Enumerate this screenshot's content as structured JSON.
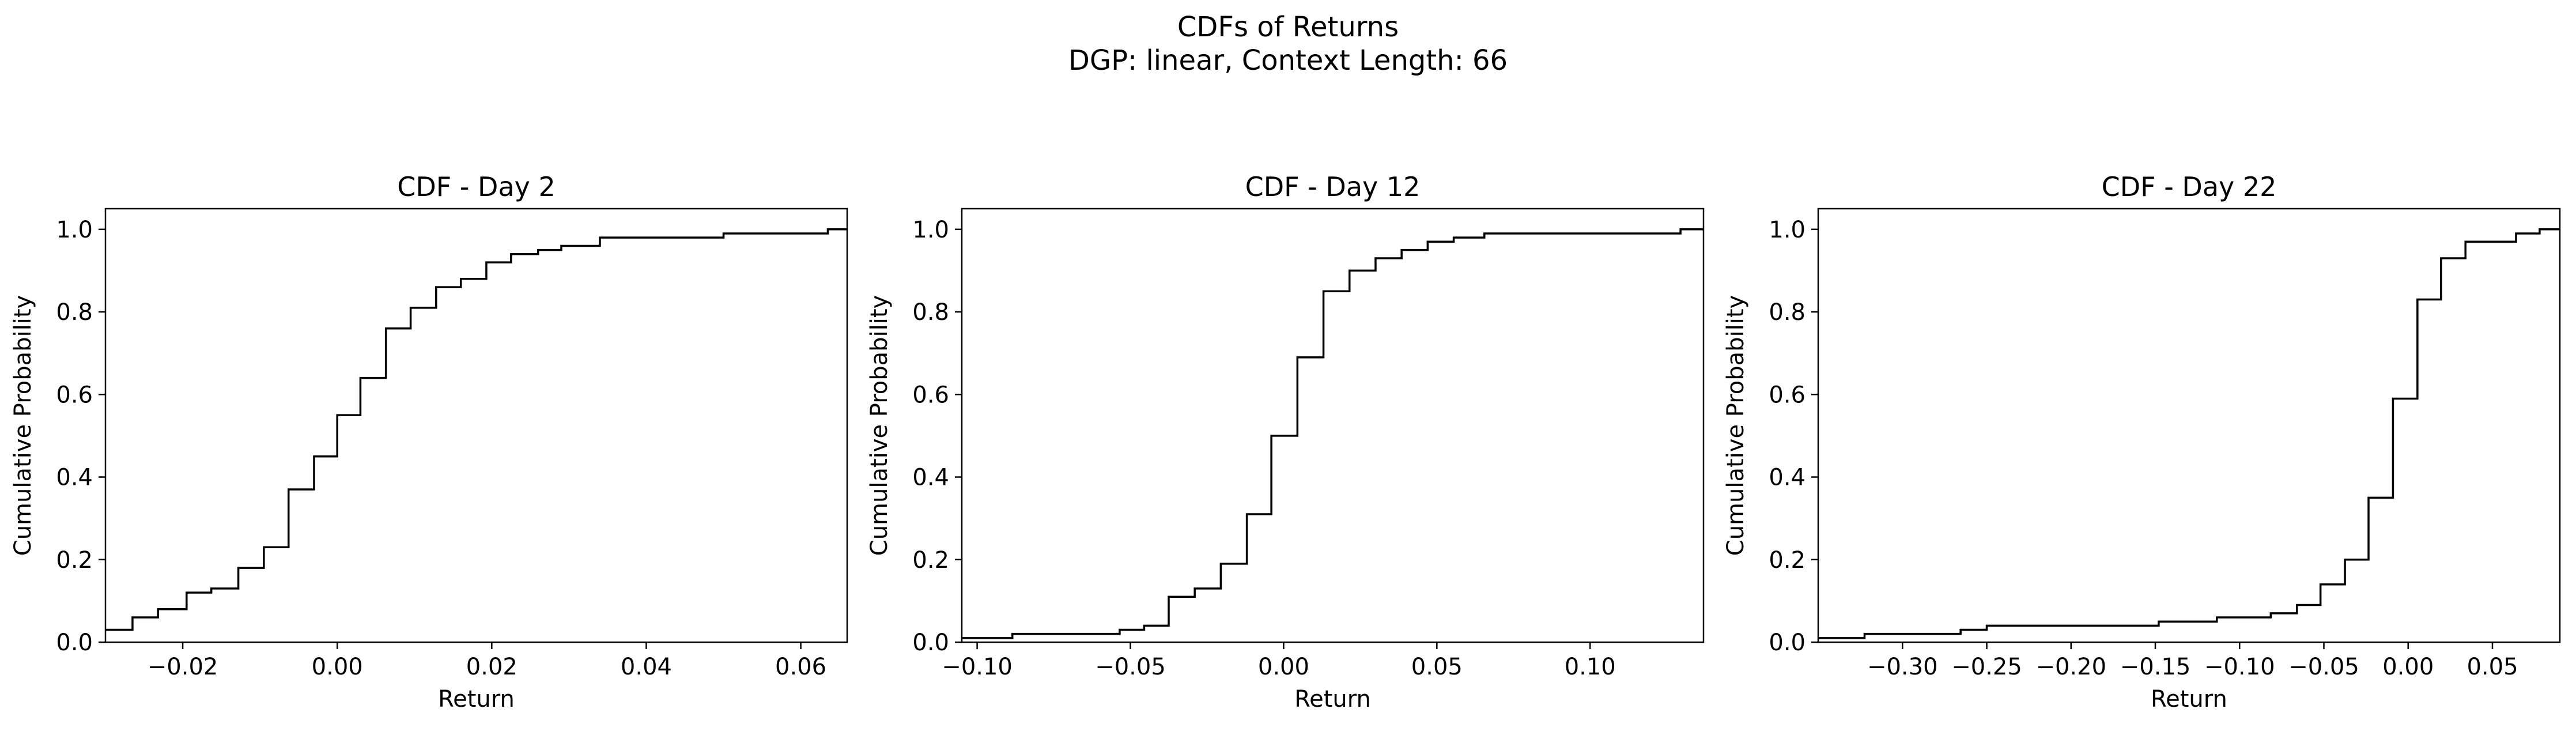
{
  "figure": {
    "title": "CDFs of Returns",
    "subtitle": "DGP: linear, Context Length: 66"
  },
  "chart_data": [
    {
      "type": "line",
      "step": true,
      "title": "CDF - Day 2",
      "xlabel": "Return",
      "ylabel": "Cumulative Probability",
      "xlim": [
        -0.03,
        0.066
      ],
      "ylim": [
        0.0,
        1.05
      ],
      "xticks": [
        -0.02,
        0.0,
        0.02,
        0.04,
        0.06
      ],
      "xtick_labels": [
        "−0.02",
        "0.00",
        "0.02",
        "0.04",
        "0.06"
      ],
      "yticks": [
        0.0,
        0.2,
        0.4,
        0.6,
        0.8,
        1.0
      ],
      "ytick_labels": [
        "0.0",
        "0.2",
        "0.4",
        "0.6",
        "0.8",
        "1.0"
      ],
      "line_color": "#000000",
      "series": [
        {
          "x": [
            -0.03,
            -0.0265,
            -0.0232,
            -0.0195,
            -0.0163,
            -0.0128,
            -0.0095,
            -0.0063,
            -0.003,
            0.0,
            0.003,
            0.0063,
            0.0095,
            0.0128,
            0.016,
            0.0193,
            0.0225,
            0.026,
            0.029,
            0.034,
            0.05,
            0.0635,
            0.066
          ],
          "y": [
            0.03,
            0.06,
            0.08,
            0.12,
            0.13,
            0.18,
            0.23,
            0.37,
            0.45,
            0.55,
            0.64,
            0.76,
            0.81,
            0.86,
            0.88,
            0.92,
            0.94,
            0.95,
            0.96,
            0.98,
            0.99,
            1.0,
            1.0
          ]
        }
      ]
    },
    {
      "type": "line",
      "step": true,
      "title": "CDF - Day 12",
      "xlabel": "Return",
      "ylabel": "Cumulative Probability",
      "xlim": [
        -0.105,
        0.137
      ],
      "ylim": [
        0.0,
        1.05
      ],
      "xticks": [
        -0.1,
        -0.05,
        0.0,
        0.05,
        0.1
      ],
      "xtick_labels": [
        "−0.10",
        "−0.05",
        "0.00",
        "0.05",
        "0.10"
      ],
      "yticks": [
        0.0,
        0.2,
        0.4,
        0.6,
        0.8,
        1.0
      ],
      "ytick_labels": [
        "0.0",
        "0.2",
        "0.4",
        "0.6",
        "0.8",
        "1.0"
      ],
      "line_color": "#000000",
      "series": [
        {
          "x": [
            -0.105,
            -0.0885,
            -0.0535,
            -0.0455,
            -0.0375,
            -0.029,
            -0.0205,
            -0.012,
            -0.004,
            0.0045,
            0.013,
            0.0215,
            0.03,
            0.0385,
            0.047,
            0.0555,
            0.0655,
            0.1295,
            0.137
          ],
          "y": [
            0.01,
            0.02,
            0.03,
            0.04,
            0.11,
            0.13,
            0.19,
            0.31,
            0.5,
            0.69,
            0.85,
            0.9,
            0.93,
            0.95,
            0.97,
            0.98,
            0.99,
            1.0,
            1.0
          ]
        }
      ]
    },
    {
      "type": "line",
      "step": true,
      "title": "CDF - Day 22",
      "xlabel": "Return",
      "ylabel": "Cumulative Probability",
      "xlim": [
        -0.35,
        0.09
      ],
      "ylim": [
        0.0,
        1.05
      ],
      "xticks": [
        -0.3,
        -0.25,
        -0.2,
        -0.15,
        -0.1,
        -0.05,
        0.0,
        0.05
      ],
      "xtick_labels": [
        "−0.30",
        "−0.25",
        "−0.20",
        "−0.15",
        "−0.10",
        "−0.05",
        "0.00",
        "0.05"
      ],
      "yticks": [
        0.0,
        0.2,
        0.4,
        0.6,
        0.8,
        1.0
      ],
      "ytick_labels": [
        "0.0",
        "0.2",
        "0.4",
        "0.6",
        "0.8",
        "1.0"
      ],
      "line_color": "#000000",
      "series": [
        {
          "x": [
            -0.35,
            -0.3225,
            -0.2655,
            -0.25,
            -0.148,
            -0.1135,
            -0.0815,
            -0.066,
            -0.052,
            -0.0375,
            -0.0235,
            -0.009,
            0.0055,
            0.0195,
            0.034,
            0.064,
            0.078,
            0.09
          ],
          "y": [
            0.01,
            0.02,
            0.03,
            0.04,
            0.05,
            0.06,
            0.07,
            0.09,
            0.14,
            0.2,
            0.35,
            0.59,
            0.83,
            0.93,
            0.97,
            0.99,
            1.0,
            1.0
          ]
        }
      ]
    }
  ]
}
